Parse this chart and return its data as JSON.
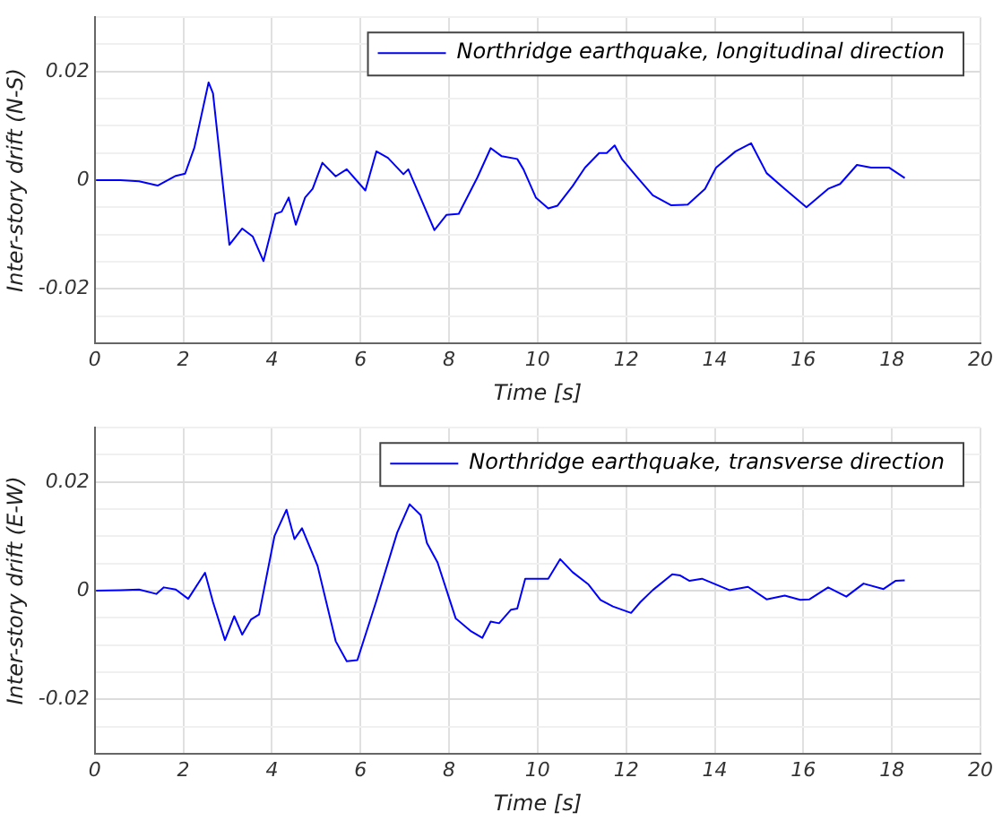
{
  "chart_data": [
    {
      "type": "line",
      "xlabel": "Time [s]",
      "ylabel": "Inter-story drift (N-S)",
      "legend": "top right",
      "grid": true,
      "xlim": [
        0,
        20
      ],
      "xticks": [
        0,
        2,
        4,
        6,
        8,
        10,
        12,
        14,
        16,
        18,
        20
      ],
      "ylim": [
        -0.03,
        0.03
      ],
      "yticks": [
        {
          "value": -0.03,
          "label": null
        },
        {
          "value": -0.025,
          "label": null
        },
        -0.02,
        {
          "value": -0.015,
          "label": null
        },
        {
          "value": -0.01,
          "label": null
        },
        {
          "value": -0.005,
          "label": null
        },
        0,
        {
          "value": 0.005,
          "label": null
        },
        {
          "value": 0.01,
          "label": null
        },
        {
          "value": 0.015,
          "label": null
        },
        0.02,
        {
          "value": 0.025,
          "label": null
        },
        {
          "value": 0.03,
          "label": null
        }
      ],
      "x": [
        0.03,
        0.58,
        1.0,
        1.42,
        1.83,
        2.04,
        2.25,
        2.57,
        2.67,
        3.04,
        3.33,
        3.57,
        3.81,
        4.08,
        4.22,
        4.38,
        4.54,
        4.75,
        4.92,
        5.14,
        5.44,
        5.69,
        6.11,
        6.36,
        6.62,
        6.97,
        7.08,
        7.67,
        7.94,
        8.22,
        8.64,
        8.94,
        9.19,
        9.54,
        9.68,
        9.96,
        10.24,
        10.45,
        10.79,
        11.07,
        11.39,
        11.56,
        11.74,
        11.91,
        12.25,
        12.6,
        13.01,
        13.39,
        13.78,
        14.03,
        14.47,
        14.82,
        15.17,
        15.58,
        16.07,
        16.56,
        16.83,
        17.21,
        17.53,
        17.94,
        18.29
      ],
      "series": [
        {
          "name": "Northridge earthquake, longitudinal direction",
          "color": "#0000ff",
          "values": [
            0,
            0,
            -0.0002,
            -0.001,
            0.0008,
            0.0012,
            0.006,
            0.018,
            0.016,
            -0.0119,
            -0.0089,
            -0.0104,
            -0.0149,
            -0.0062,
            -0.0058,
            -0.0032,
            -0.0082,
            -0.0032,
            -0.0016,
            0.0032,
            0.0007,
            0.002,
            -0.0019,
            0.0053,
            0.0041,
            0.0011,
            0.002,
            -0.0092,
            -0.0064,
            -0.0062,
            0.0005,
            0.0059,
            0.0044,
            0.0039,
            0.002,
            -0.0032,
            -0.0052,
            -0.0047,
            -0.0011,
            0.0023,
            0.005,
            0.005,
            0.0064,
            0.0038,
            0.0005,
            -0.0028,
            -0.0046,
            -0.0045,
            -0.0016,
            0.0023,
            0.0053,
            0.0068,
            0.0013,
            -0.0016,
            -0.005,
            -0.0016,
            -0.0007,
            0.0028,
            0.0023,
            0.0023,
            0.0004
          ]
        }
      ]
    },
    {
      "type": "line",
      "xlabel": "Time [s]",
      "ylabel": "Inter-story drift (E-W)",
      "legend": "top right",
      "grid": true,
      "xlim": [
        0,
        20
      ],
      "xticks": [
        0,
        2,
        4,
        6,
        8,
        10,
        12,
        14,
        16,
        18,
        20
      ],
      "ylim": [
        -0.03,
        0.03
      ],
      "yticks": [
        {
          "value": -0.03,
          "label": null
        },
        {
          "value": -0.025,
          "label": null
        },
        -0.02,
        {
          "value": -0.015,
          "label": null
        },
        {
          "value": -0.01,
          "label": null
        },
        {
          "value": -0.005,
          "label": null
        },
        0,
        {
          "value": 0.005,
          "label": null
        },
        {
          "value": 0.01,
          "label": null
        },
        {
          "value": 0.015,
          "label": null
        },
        0.02,
        {
          "value": 0.025,
          "label": null
        },
        {
          "value": 0.03,
          "label": null
        }
      ],
      "x": [
        0.03,
        0.58,
        1.0,
        1.39,
        1.56,
        1.83,
        2.11,
        2.49,
        2.67,
        2.94,
        3.15,
        3.33,
        3.53,
        3.71,
        4.06,
        4.33,
        4.51,
        4.68,
        5.03,
        5.44,
        5.69,
        5.93,
        6.35,
        6.83,
        7.11,
        7.36,
        7.5,
        7.74,
        8.15,
        8.5,
        8.75,
        8.94,
        9.13,
        9.4,
        9.54,
        9.72,
        10.1,
        10.24,
        10.51,
        10.79,
        11.14,
        11.42,
        11.7,
        12.11,
        12.32,
        12.6,
        13.04,
        13.22,
        13.43,
        13.71,
        14.33,
        14.75,
        15.17,
        15.58,
        15.93,
        16.14,
        16.56,
        16.97,
        17.36,
        17.81,
        18.08,
        18.29
      ],
      "series": [
        {
          "name": "Northridge earthquake, transverse direction",
          "color": "#0000ff",
          "values": [
            0,
            0.0001,
            0.0002,
            -0.0006,
            0.0006,
            0.0002,
            -0.0015,
            0.0033,
            -0.0021,
            -0.0091,
            -0.0047,
            -0.0081,
            -0.0053,
            -0.0044,
            0.0101,
            0.0149,
            0.0095,
            0.0115,
            0.0046,
            -0.0093,
            -0.013,
            -0.0128,
            -0.0021,
            0.0107,
            0.0159,
            0.0139,
            0.0088,
            0.0052,
            -0.0051,
            -0.0075,
            -0.0087,
            -0.0057,
            -0.006,
            -0.0035,
            -0.0033,
            0.0022,
            0.0022,
            0.0022,
            0.0058,
            0.0034,
            0.0012,
            -0.0017,
            -0.0029,
            -0.0041,
            -0.0021,
            0.0001,
            0.003,
            0.0028,
            0.0018,
            0.0022,
            0.0001,
            0.0007,
            -0.0016,
            -0.0009,
            -0.0017,
            -0.0016,
            0.0006,
            -0.0011,
            0.0013,
            0.0003,
            0.0018,
            0.0019
          ]
        }
      ]
    }
  ]
}
